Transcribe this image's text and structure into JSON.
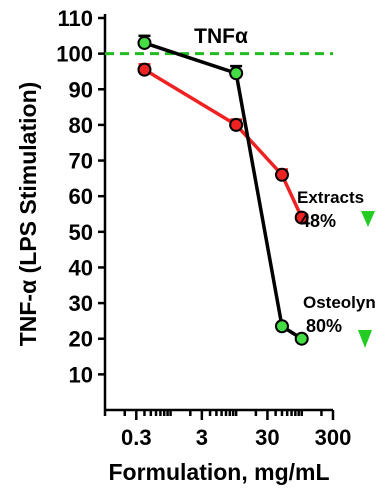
{
  "chart_data": {
    "type": "line",
    "title": "TNFα",
    "xlabel": "Formulation, mg/mL",
    "ylabel": "TNF-α (LPS Stimulation)",
    "x_scale": "log",
    "xlim": [
      0.1,
      300
    ],
    "ylim": [
      0,
      110
    ],
    "x_ticks": [
      0.3,
      3,
      30,
      300
    ],
    "x_tick_labels": [
      "0.3",
      "3",
      "30",
      "300"
    ],
    "y_ticks": [
      10,
      20,
      30,
      40,
      50,
      60,
      70,
      80,
      90,
      100,
      110
    ],
    "y_tick_labels": [
      "10",
      "20",
      "30",
      "40",
      "50",
      "60",
      "70",
      "80",
      "90",
      "100",
      "110"
    ],
    "reference_line": {
      "y": 100,
      "color": "#22bb22",
      "style": "dashed"
    },
    "series": [
      {
        "color": "#ee2222",
        "x": [
          0.4,
          10,
          50,
          100
        ],
        "y": [
          95.5,
          80,
          66,
          54
        ],
        "err": [
          1.5,
          1.5,
          1.5,
          1
        ]
      },
      {
        "color": "#000000",
        "marker_color": "#44dd44",
        "x": [
          0.4,
          10,
          50,
          100
        ],
        "y": [
          103,
          94.5,
          23.5,
          20
        ],
        "err": [
          2,
          2,
          0,
          0
        ]
      }
    ],
    "annotations": [
      {
        "label": "Extracts",
        "value": "48%",
        "color": "#000000",
        "arrow_color": "#22cc22"
      },
      {
        "label": "Osteolyn",
        "value": "80%",
        "color": "#000000",
        "arrow_color": "#22cc22"
      }
    ]
  }
}
